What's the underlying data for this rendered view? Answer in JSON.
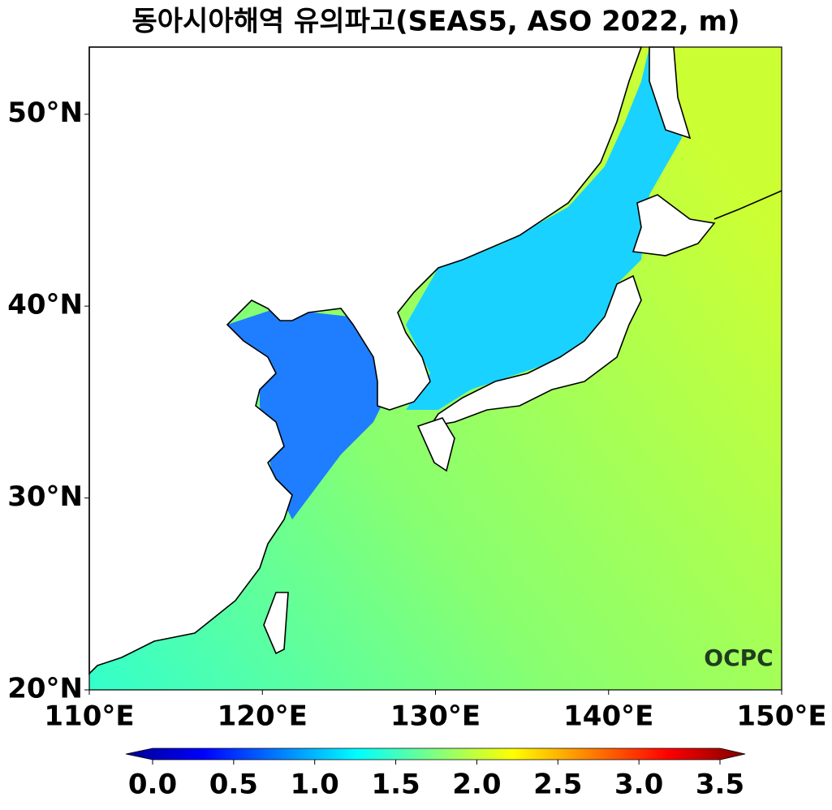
{
  "chart_data": {
    "type": "map",
    "title": "동아시아해역 유의파고(SEAS5, ASO 2022, m)",
    "xlim": [
      110,
      150
    ],
    "ylim": [
      20,
      53.5
    ],
    "xticks": [
      {
        "value": 110,
        "label": "110°E"
      },
      {
        "value": 120,
        "label": "120°E"
      },
      {
        "value": 130,
        "label": "130°E"
      },
      {
        "value": 140,
        "label": "140°E"
      },
      {
        "value": 150,
        "label": "150°E"
      }
    ],
    "yticks": [
      {
        "value": 20,
        "label": "20°N"
      },
      {
        "value": 30,
        "label": "30°N"
      },
      {
        "value": 40,
        "label": "40°N"
      },
      {
        "value": 50,
        "label": "50°N"
      }
    ],
    "colorbar": {
      "lim": [
        0,
        3.5
      ],
      "ticks": [
        {
          "value": 0,
          "label": "0.0"
        },
        {
          "value": 0.5,
          "label": "0.5"
        },
        {
          "value": 1,
          "label": "1.0"
        },
        {
          "value": 1.5,
          "label": "1.5"
        },
        {
          "value": 2,
          "label": "2.0"
        },
        {
          "value": 2.5,
          "label": "2.5"
        },
        {
          "value": 3,
          "label": "3.0"
        },
        {
          "value": 3.5,
          "label": "3.5"
        }
      ]
    },
    "watermark": "OCPC"
  }
}
